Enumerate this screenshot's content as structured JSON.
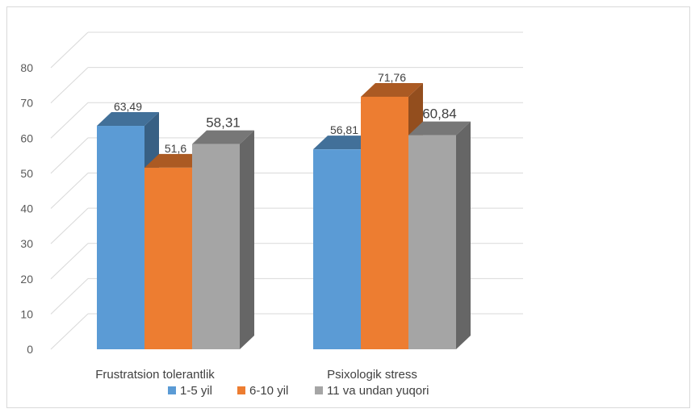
{
  "chart_data": {
    "type": "bar",
    "title": "",
    "xlabel": "",
    "ylabel": "",
    "categories": [
      "Frustratsion tolerantlik",
      "Psixologik stress"
    ],
    "series": [
      {
        "name": "1-5 yil",
        "values": [
          63.49,
          56.81
        ],
        "labels": [
          "63,49",
          "56,81"
        ],
        "color": "#5b9bd5",
        "label_emphasis": "normal"
      },
      {
        "name": "6-10 yil",
        "values": [
          51.6,
          71.76
        ],
        "labels": [
          "51,6",
          "71,76"
        ],
        "color": "#ed7d31",
        "label_emphasis": "normal"
      },
      {
        "name": "11 va undan yuqori",
        "values": [
          58.31,
          60.84
        ],
        "labels": [
          "58,31",
          "60,84"
        ],
        "color": "#a5a5a5",
        "label_emphasis": "large"
      }
    ],
    "ylim": [
      0,
      80
    ],
    "yticks": [
      "0",
      "10",
      "20",
      "30",
      "40",
      "50",
      "60",
      "70",
      "80"
    ],
    "grid": true,
    "style": "3d-clustered-column",
    "legend_position": "bottom"
  }
}
